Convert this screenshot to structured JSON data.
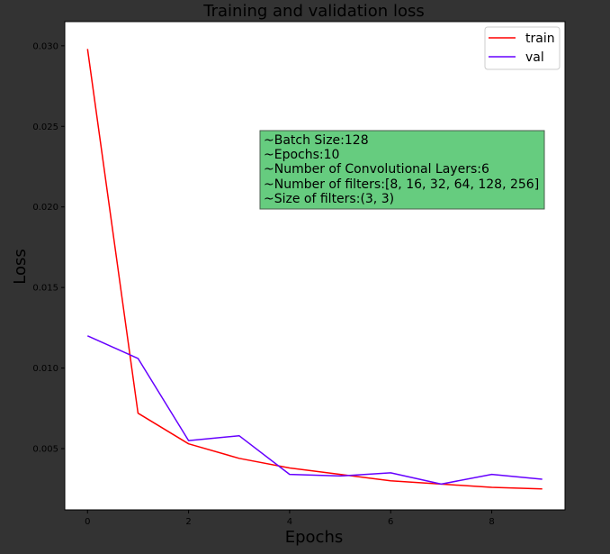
{
  "chart_data": {
    "type": "line",
    "title": "Training and validation loss",
    "xlabel": "Epochs",
    "ylabel": "Loss",
    "xlim": [
      -0.45,
      9.45
    ],
    "ylim": [
      0.0012,
      0.0315
    ],
    "xticks": [
      0,
      2,
      4,
      6,
      8
    ],
    "xtick_labels": [
      "0",
      "2",
      "4",
      "6",
      "8"
    ],
    "yticks": [
      0.005,
      0.01,
      0.015,
      0.02,
      0.025,
      0.03
    ],
    "ytick_labels": [
      "0.005",
      "0.010",
      "0.015",
      "0.020",
      "0.025",
      "0.030"
    ],
    "x": [
      0,
      1,
      2,
      3,
      4,
      5,
      6,
      7,
      8,
      9
    ],
    "series": [
      {
        "name": "train",
        "color": "#ff0000",
        "values": [
          0.0298,
          0.0072,
          0.0053,
          0.0044,
          0.0038,
          0.0034,
          0.003,
          0.0028,
          0.0026,
          0.0025
        ]
      },
      {
        "name": "val",
        "color": "#6600ff",
        "values": [
          0.012,
          0.0106,
          0.0055,
          0.0058,
          0.0034,
          0.0033,
          0.0035,
          0.0028,
          0.0034,
          0.0031
        ]
      }
    ],
    "grid": false,
    "legend_position": "upper right",
    "annotation": {
      "background": "#66cc7f",
      "lines": [
        "~Batch Size:128",
        "~Epochs:10",
        "~Number of Convolutional Layers:6",
        "~Number of filters:[8, 16, 32, 64, 128, 256]",
        "~Size of filters:(3, 3)"
      ]
    }
  },
  "colors": {
    "figure_background": "#333333",
    "plot_background": "#ffffff"
  }
}
